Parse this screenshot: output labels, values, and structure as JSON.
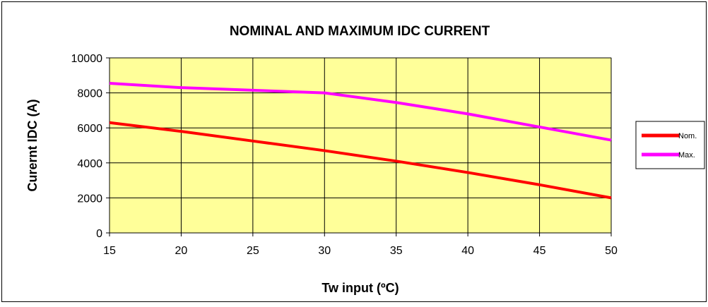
{
  "chart_data": {
    "type": "line",
    "title": "NOMINAL AND MAXIMUM IDC CURRENT",
    "xlabel": "Tw input (ºC)",
    "ylabel": "Curernt IDC (A)",
    "x": [
      15,
      20,
      25,
      30,
      35,
      40,
      45,
      50
    ],
    "x_tick_labels": [
      "15",
      "20",
      "25",
      "30",
      "35",
      "40",
      "45",
      "50"
    ],
    "y_tick_labels": [
      "0",
      "2000",
      "4000",
      "6000",
      "8000",
      "10000"
    ],
    "xlim": [
      15,
      50
    ],
    "ylim": [
      0,
      10000
    ],
    "y_ticks": [
      0,
      2000,
      4000,
      6000,
      8000,
      10000
    ],
    "grid": true,
    "legend_position": "right",
    "series": [
      {
        "name": "Nom.",
        "color": "#ff0000",
        "values": [
          6300,
          5800,
          5250,
          4700,
          4100,
          3450,
          2750,
          2000
        ]
      },
      {
        "name": "Max.",
        "color": "#ff00ff",
        "values": [
          8550,
          8300,
          8150,
          8000,
          7450,
          6800,
          6050,
          5300
        ]
      }
    ],
    "plot_background": "#ffff99",
    "gridline_color": "#000000"
  }
}
